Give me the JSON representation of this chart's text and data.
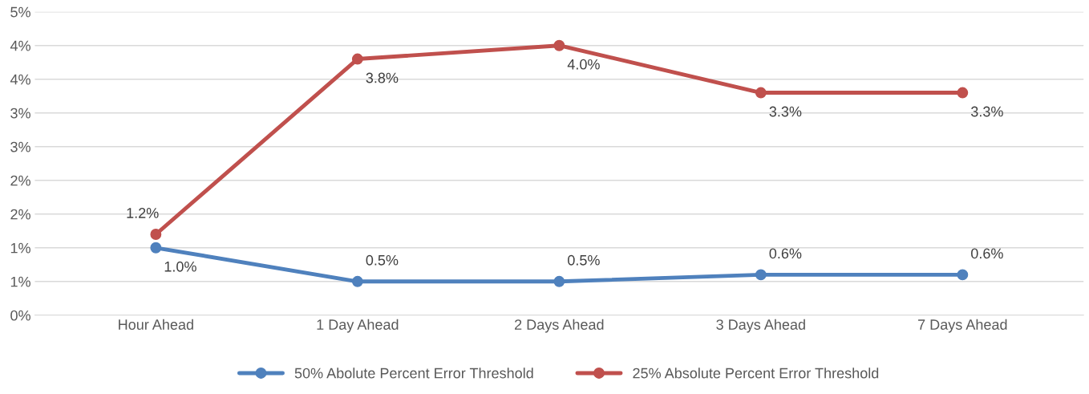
{
  "chart_data": {
    "type": "line",
    "categories": [
      "Hour Ahead",
      "1 Day Ahead",
      "2 Days Ahead",
      "3 Days Ahead",
      "7 Days Ahead"
    ],
    "series": [
      {
        "name": "50% Abolute Percent Error Threshold",
        "color": "#4f81bd",
        "values": [
          1.0,
          0.5,
          0.5,
          0.6,
          0.6
        ],
        "value_labels": [
          "1.0%",
          "0.5%",
          "0.5%",
          "0.6%",
          "0.6%"
        ]
      },
      {
        "name": "25% Absolute Percent Error Threshold",
        "color": "#c0504d",
        "values": [
          1.2,
          3.8,
          4.0,
          3.3,
          3.3
        ],
        "value_labels": [
          "1.2%",
          "3.8%",
          "4.0%",
          "3.3%",
          "3.3%"
        ]
      }
    ],
    "ylim": [
      0,
      4.5
    ],
    "yticks": [
      {
        "value": 0,
        "label": "0%"
      },
      {
        "value": 0.5,
        "label": "1%"
      },
      {
        "value": 1.0,
        "label": "1%"
      },
      {
        "value": 1.5,
        "label": "2%"
      },
      {
        "value": 2.0,
        "label": "2%"
      },
      {
        "value": 2.5,
        "label": "3%"
      },
      {
        "value": 3.0,
        "label": "3%"
      },
      {
        "value": 3.5,
        "label": "4%"
      },
      {
        "value": 4.0,
        "label": "4%"
      },
      {
        "value": 4.5,
        "label": "5%"
      }
    ],
    "grid": "y",
    "legend": "bottom",
    "marker": "circle",
    "line_style": "solid"
  }
}
